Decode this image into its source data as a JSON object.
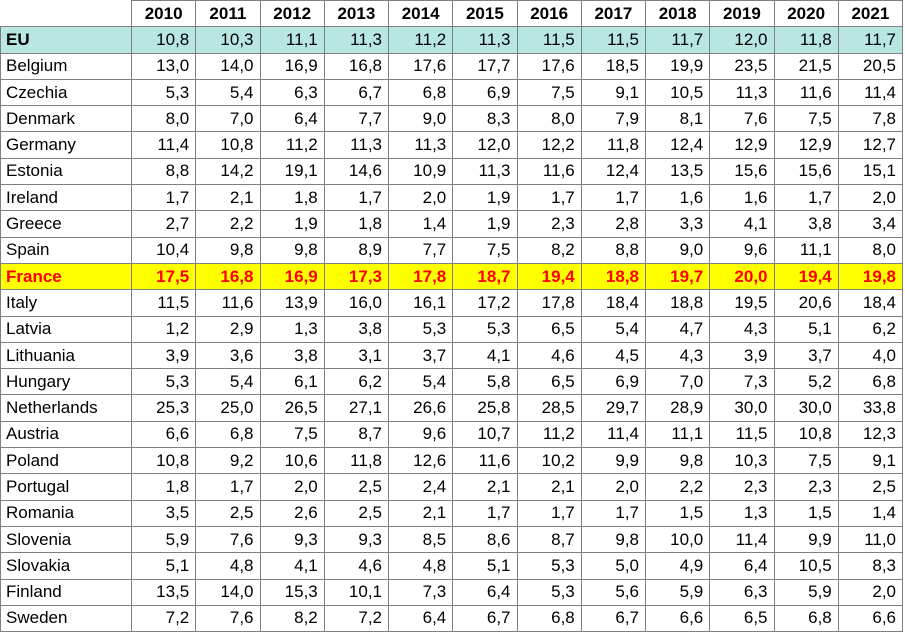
{
  "table": {
    "years": [
      "2010",
      "2011",
      "2012",
      "2013",
      "2014",
      "2015",
      "2016",
      "2017",
      "2018",
      "2019",
      "2020",
      "2021"
    ],
    "rows": [
      {
        "name": "EU",
        "values": [
          "10,8",
          "10,3",
          "11,1",
          "11,3",
          "11,2",
          "11,3",
          "11,5",
          "11,5",
          "11,7",
          "12,0",
          "11,8",
          "11,7"
        ]
      },
      {
        "name": "Belgium",
        "values": [
          "13,0",
          "14,0",
          "16,9",
          "16,8",
          "17,6",
          "17,7",
          "17,6",
          "18,5",
          "19,9",
          "23,5",
          "21,5",
          "20,5"
        ]
      },
      {
        "name": "Czechia",
        "values": [
          "5,3",
          "5,4",
          "6,3",
          "6,7",
          "6,8",
          "6,9",
          "7,5",
          "9,1",
          "10,5",
          "11,3",
          "11,6",
          "11,4"
        ]
      },
      {
        "name": "Denmark",
        "values": [
          "8,0",
          "7,0",
          "6,4",
          "7,7",
          "9,0",
          "8,3",
          "8,0",
          "7,9",
          "8,1",
          "7,6",
          "7,5",
          "7,8"
        ]
      },
      {
        "name": "Germany",
        "values": [
          "11,4",
          "10,8",
          "11,2",
          "11,3",
          "11,3",
          "12,0",
          "12,2",
          "11,8",
          "12,4",
          "12,9",
          "12,9",
          "12,7"
        ]
      },
      {
        "name": "Estonia",
        "values": [
          "8,8",
          "14,2",
          "19,1",
          "14,6",
          "10,9",
          "11,3",
          "11,6",
          "12,4",
          "13,5",
          "15,6",
          "15,6",
          "15,1"
        ]
      },
      {
        "name": "Ireland",
        "values": [
          "1,7",
          "2,1",
          "1,8",
          "1,7",
          "2,0",
          "1,9",
          "1,7",
          "1,7",
          "1,6",
          "1,6",
          "1,7",
          "2,0"
        ]
      },
      {
        "name": "Greece",
        "values": [
          "2,7",
          "2,2",
          "1,9",
          "1,8",
          "1,4",
          "1,9",
          "2,3",
          "2,8",
          "3,3",
          "4,1",
          "3,8",
          "3,4"
        ]
      },
      {
        "name": "Spain",
        "values": [
          "10,4",
          "9,8",
          "9,8",
          "8,9",
          "7,7",
          "7,5",
          "8,2",
          "8,8",
          "9,0",
          "9,6",
          "11,1",
          "8,0"
        ]
      },
      {
        "name": "France",
        "values": [
          "17,5",
          "16,8",
          "16,9",
          "17,3",
          "17,8",
          "18,7",
          "19,4",
          "18,8",
          "19,7",
          "20,0",
          "19,4",
          "19,8"
        ]
      },
      {
        "name": "Italy",
        "values": [
          "11,5",
          "11,6",
          "13,9",
          "16,0",
          "16,1",
          "17,2",
          "17,8",
          "18,4",
          "18,8",
          "19,5",
          "20,6",
          "18,4"
        ]
      },
      {
        "name": "Latvia",
        "values": [
          "1,2",
          "2,9",
          "1,3",
          "3,8",
          "5,3",
          "5,3",
          "6,5",
          "5,4",
          "4,7",
          "4,3",
          "5,1",
          "6,2"
        ]
      },
      {
        "name": "Lithuania",
        "values": [
          "3,9",
          "3,6",
          "3,8",
          "3,1",
          "3,7",
          "4,1",
          "4,6",
          "4,5",
          "4,3",
          "3,9",
          "3,7",
          "4,0"
        ]
      },
      {
        "name": "Hungary",
        "values": [
          "5,3",
          "5,4",
          "6,1",
          "6,2",
          "5,4",
          "5,8",
          "6,5",
          "6,9",
          "7,0",
          "7,3",
          "5,2",
          "6,8"
        ]
      },
      {
        "name": "Netherlands",
        "values": [
          "25,3",
          "25,0",
          "26,5",
          "27,1",
          "26,6",
          "25,8",
          "28,5",
          "29,7",
          "28,9",
          "30,0",
          "30,0",
          "33,8"
        ]
      },
      {
        "name": "Austria",
        "values": [
          "6,6",
          "6,8",
          "7,5",
          "8,7",
          "9,6",
          "10,7",
          "11,2",
          "11,4",
          "11,1",
          "11,5",
          "10,8",
          "12,3"
        ]
      },
      {
        "name": "Poland",
        "values": [
          "10,8",
          "9,2",
          "10,6",
          "11,8",
          "12,6",
          "11,6",
          "10,2",
          "9,9",
          "9,8",
          "10,3",
          "7,5",
          "9,1"
        ]
      },
      {
        "name": "Portugal",
        "values": [
          "1,8",
          "1,7",
          "2,0",
          "2,5",
          "2,4",
          "2,1",
          "2,1",
          "2,0",
          "2,2",
          "2,3",
          "2,3",
          "2,5"
        ]
      },
      {
        "name": "Romania",
        "values": [
          "3,5",
          "2,5",
          "2,6",
          "2,5",
          "2,1",
          "1,7",
          "1,7",
          "1,7",
          "1,5",
          "1,3",
          "1,5",
          "1,4"
        ]
      },
      {
        "name": "Slovenia",
        "values": [
          "5,9",
          "7,6",
          "9,3",
          "9,3",
          "8,5",
          "8,6",
          "8,7",
          "9,8",
          "10,0",
          "11,4",
          "9,9",
          "11,0"
        ]
      },
      {
        "name": "Slovakia",
        "values": [
          "5,1",
          "4,8",
          "4,1",
          "4,6",
          "4,8",
          "5,1",
          "5,3",
          "5,0",
          "4,9",
          "6,4",
          "10,5",
          "8,3"
        ]
      },
      {
        "name": "Finland",
        "values": [
          "13,5",
          "14,0",
          "15,3",
          "10,1",
          "7,3",
          "6,4",
          "5,3",
          "5,6",
          "5,9",
          "6,3",
          "5,9",
          "2,0"
        ]
      },
      {
        "name": "Sweden",
        "values": [
          "7,2",
          "7,6",
          "8,2",
          "7,2",
          "6,4",
          "6,7",
          "6,8",
          "6,7",
          "6,6",
          "6,5",
          "6,8",
          "6,6"
        ]
      }
    ]
  },
  "highlight": {
    "eu_row": "EU",
    "france_row": "France",
    "eu_bg": "#b7e6e3",
    "france_bg": "#ffff00",
    "france_text": "#ff0000"
  }
}
